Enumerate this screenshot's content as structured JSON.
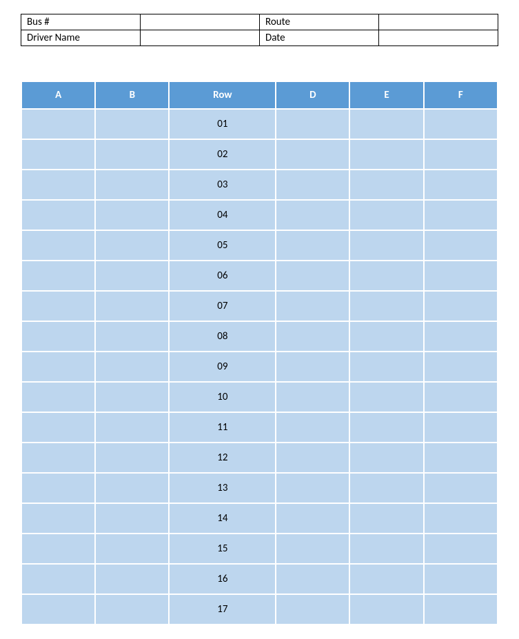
{
  "info": {
    "bus_number_label": "Bus #",
    "bus_number_value": "",
    "route_label": "Route",
    "route_value": "",
    "driver_name_label": "Driver Name",
    "driver_name_value": "",
    "date_label": "Date",
    "date_value": ""
  },
  "seating": {
    "columns": [
      "A",
      "B",
      "Row",
      "D",
      "E",
      "F"
    ],
    "header_bg": "#5b9bd5",
    "header_fg": "#ffffff",
    "cell_bg": "#bdd6ee",
    "cell_fg": "#000000",
    "rows": [
      {
        "a": "",
        "b": "",
        "row": "01",
        "d": "",
        "e": "",
        "f": ""
      },
      {
        "a": "",
        "b": "",
        "row": "02",
        "d": "",
        "e": "",
        "f": ""
      },
      {
        "a": "",
        "b": "",
        "row": "03",
        "d": "",
        "e": "",
        "f": ""
      },
      {
        "a": "",
        "b": "",
        "row": "04",
        "d": "",
        "e": "",
        "f": ""
      },
      {
        "a": "",
        "b": "",
        "row": "05",
        "d": "",
        "e": "",
        "f": ""
      },
      {
        "a": "",
        "b": "",
        "row": "06",
        "d": "",
        "e": "",
        "f": ""
      },
      {
        "a": "",
        "b": "",
        "row": "07",
        "d": "",
        "e": "",
        "f": ""
      },
      {
        "a": "",
        "b": "",
        "row": "08",
        "d": "",
        "e": "",
        "f": ""
      },
      {
        "a": "",
        "b": "",
        "row": "09",
        "d": "",
        "e": "",
        "f": ""
      },
      {
        "a": "",
        "b": "",
        "row": "10",
        "d": "",
        "e": "",
        "f": ""
      },
      {
        "a": "",
        "b": "",
        "row": "11",
        "d": "",
        "e": "",
        "f": ""
      },
      {
        "a": "",
        "b": "",
        "row": "12",
        "d": "",
        "e": "",
        "f": ""
      },
      {
        "a": "",
        "b": "",
        "row": "13",
        "d": "",
        "e": "",
        "f": ""
      },
      {
        "a": "",
        "b": "",
        "row": "14",
        "d": "",
        "e": "",
        "f": ""
      },
      {
        "a": "",
        "b": "",
        "row": "15",
        "d": "",
        "e": "",
        "f": ""
      },
      {
        "a": "",
        "b": "",
        "row": "16",
        "d": "",
        "e": "",
        "f": ""
      },
      {
        "a": "",
        "b": "",
        "row": "17",
        "d": "",
        "e": "",
        "f": ""
      }
    ]
  }
}
